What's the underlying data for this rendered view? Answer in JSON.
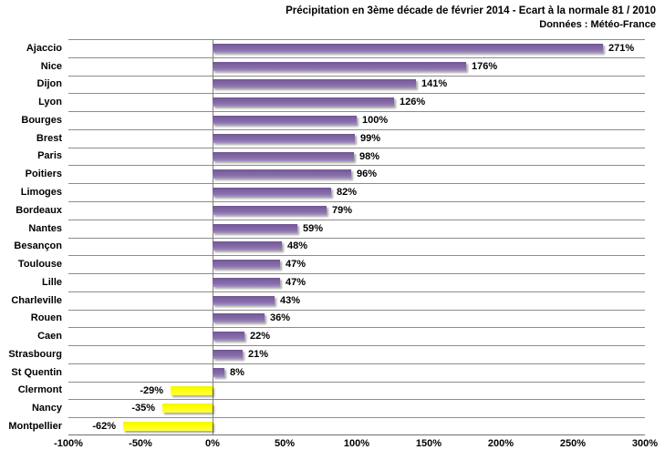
{
  "chart_data": {
    "type": "bar",
    "orientation": "horizontal",
    "title": "Précipitation en 3ème décade de février 2014 - Ecart à la normale 81 / 2010",
    "subtitle": "Données : Météo-France",
    "categories": [
      "Ajaccio",
      "Nice",
      "Dijon",
      "Lyon",
      "Bourges",
      "Brest",
      "Paris",
      "Poitiers",
      "Limoges",
      "Bordeaux",
      "Nantes",
      "Besançon",
      "Toulouse",
      "Lille",
      "Charleville",
      "Rouen",
      "Caen",
      "Strasbourg",
      "St Quentin",
      "Clermont",
      "Nancy",
      "Montpellier"
    ],
    "values": [
      271,
      176,
      141,
      126,
      100,
      99,
      98,
      96,
      82,
      79,
      59,
      48,
      47,
      47,
      43,
      36,
      22,
      21,
      8,
      -29,
      -35,
      -62
    ],
    "value_labels": [
      "271%",
      "176%",
      "141%",
      "126%",
      "100%",
      "99%",
      "98%",
      "96%",
      "82%",
      "79%",
      "59%",
      "48%",
      "47%",
      "47%",
      "43%",
      "36%",
      "22%",
      "21%",
      "8%",
      "-29%",
      "-35%",
      "-62%"
    ],
    "xlim": [
      -100,
      300
    ],
    "x_ticks": [
      "-100%",
      "-50%",
      "0%",
      "50%",
      "100%",
      "150%",
      "200%",
      "250%",
      "300%"
    ],
    "x_tick_values": [
      -100,
      -50,
      0,
      50,
      100,
      150,
      200,
      250,
      300
    ],
    "legend": "none",
    "grid": "category-separator-lines",
    "colors": {
      "positive_bar": "#8064A2",
      "negative_bar": "#FFFF00",
      "gridline": "#8C8C8C",
      "zero_axis": "#808080",
      "text": "#000000"
    }
  }
}
